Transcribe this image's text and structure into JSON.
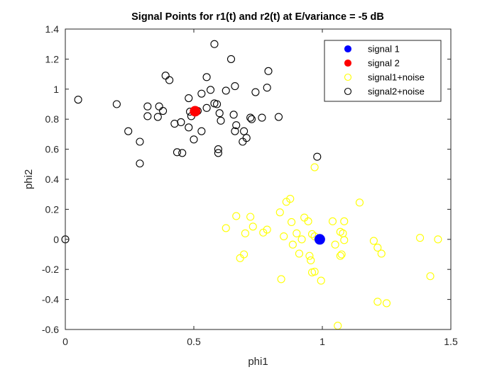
{
  "chart_data": {
    "type": "scatter",
    "title": "Signal Points for r1(t) and r2(t) at E/variance = -5 dB",
    "xlabel": "phi1",
    "ylabel": "phi2",
    "xlim": [
      0,
      1.5
    ],
    "ylim": [
      -0.6,
      1.4
    ],
    "xticks": [
      0,
      0.5,
      1,
      1.5
    ],
    "xtick_labels": [
      "0",
      "0.5",
      "1",
      "1.5"
    ],
    "yticks": [
      -0.6,
      -0.4,
      -0.2,
      0,
      0.2,
      0.4,
      0.6,
      0.8,
      1,
      1.2,
      1.4
    ],
    "ytick_labels": [
      "-0.6",
      "-0.4",
      "-0.2",
      "0",
      "0.2",
      "0.4",
      "0.6",
      "0.8",
      "1",
      "1.2",
      "1.4"
    ],
    "grid": false,
    "legend_position": "top-right",
    "series": [
      {
        "name": "signal 1",
        "marker": "filled-circle",
        "color": "#0000ff",
        "points": [
          [
            0.99,
            0.0
          ]
        ]
      },
      {
        "name": "signal 2",
        "marker": "filled-circle",
        "color": "#ff0000",
        "points": [
          [
            0.505,
            0.853
          ]
        ]
      },
      {
        "name": "signal1+noise",
        "marker": "open-circle",
        "color": "#ffff00",
        "points": [
          [
            0.97,
            0.48
          ],
          [
            0.875,
            0.27
          ],
          [
            0.86,
            0.25
          ],
          [
            1.145,
            0.245
          ],
          [
            0.835,
            0.18
          ],
          [
            0.665,
            0.155
          ],
          [
            0.72,
            0.15
          ],
          [
            0.93,
            0.145
          ],
          [
            0.945,
            0.12
          ],
          [
            1.04,
            0.12
          ],
          [
            1.085,
            0.12
          ],
          [
            0.88,
            0.115
          ],
          [
            0.73,
            0.085
          ],
          [
            0.625,
            0.075
          ],
          [
            0.785,
            0.065
          ],
          [
            0.77,
            0.045
          ],
          [
            0.9,
            0.04
          ],
          [
            0.7,
            0.04
          ],
          [
            0.96,
            0.035
          ],
          [
            1.07,
            0.05
          ],
          [
            1.08,
            0.04
          ],
          [
            0.85,
            0.02
          ],
          [
            0.97,
            0.02
          ],
          [
            0.92,
            0.0
          ],
          [
            1.085,
            -0.005
          ],
          [
            1.38,
            0.01
          ],
          [
            1.45,
            0.0
          ],
          [
            1.2,
            -0.01
          ],
          [
            0.885,
            -0.035
          ],
          [
            1.05,
            -0.035
          ],
          [
            1.215,
            -0.055
          ],
          [
            1.23,
            -0.095
          ],
          [
            0.91,
            -0.095
          ],
          [
            0.95,
            -0.11
          ],
          [
            1.075,
            -0.1
          ],
          [
            0.695,
            -0.1
          ],
          [
            0.68,
            -0.125
          ],
          [
            0.955,
            -0.14
          ],
          [
            1.07,
            -0.11
          ],
          [
            0.97,
            -0.215
          ],
          [
            0.96,
            -0.22
          ],
          [
            1.42,
            -0.245
          ],
          [
            0.84,
            -0.265
          ],
          [
            0.995,
            -0.275
          ],
          [
            1.215,
            -0.415
          ],
          [
            1.25,
            -0.425
          ],
          [
            1.06,
            -0.575
          ]
        ]
      },
      {
        "name": "signal2+noise",
        "marker": "open-circle",
        "color": "#000000",
        "points": [
          [
            0.58,
            1.3
          ],
          [
            0.645,
            1.2
          ],
          [
            0.79,
            1.12
          ],
          [
            0.39,
            1.09
          ],
          [
            0.55,
            1.08
          ],
          [
            0.405,
            1.06
          ],
          [
            0.66,
            1.02
          ],
          [
            0.785,
            1.01
          ],
          [
            0.625,
            0.99
          ],
          [
            0.565,
            0.995
          ],
          [
            0.74,
            0.98
          ],
          [
            0.53,
            0.97
          ],
          [
            0.05,
            0.93
          ],
          [
            0.48,
            0.94
          ],
          [
            0.2,
            0.9
          ],
          [
            0.58,
            0.905
          ],
          [
            0.59,
            0.9
          ],
          [
            0.32,
            0.885
          ],
          [
            0.365,
            0.885
          ],
          [
            0.55,
            0.875
          ],
          [
            0.38,
            0.855
          ],
          [
            0.485,
            0.85
          ],
          [
            0.515,
            0.855
          ],
          [
            0.6,
            0.84
          ],
          [
            0.655,
            0.83
          ],
          [
            0.32,
            0.82
          ],
          [
            0.36,
            0.815
          ],
          [
            0.49,
            0.82
          ],
          [
            0.72,
            0.81
          ],
          [
            0.765,
            0.81
          ],
          [
            0.83,
            0.815
          ],
          [
            0.725,
            0.8
          ],
          [
            0.605,
            0.79
          ],
          [
            0.45,
            0.78
          ],
          [
            0.425,
            0.77
          ],
          [
            0.665,
            0.76
          ],
          [
            0.48,
            0.745
          ],
          [
            0.245,
            0.72
          ],
          [
            0.53,
            0.72
          ],
          [
            0.66,
            0.72
          ],
          [
            0.695,
            0.72
          ],
          [
            0.5,
            0.665
          ],
          [
            0.705,
            0.675
          ],
          [
            0.29,
            0.65
          ],
          [
            0.69,
            0.65
          ],
          [
            0.595,
            0.6
          ],
          [
            0.595,
            0.575
          ],
          [
            0.435,
            0.58
          ],
          [
            0.455,
            0.575
          ],
          [
            0.29,
            0.505
          ],
          [
            0.98,
            0.55
          ],
          [
            0.0,
            0.0
          ]
        ]
      }
    ]
  }
}
